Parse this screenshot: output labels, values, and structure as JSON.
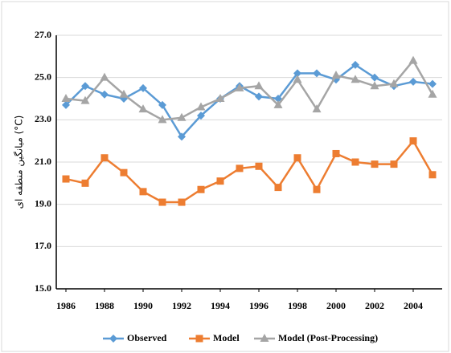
{
  "chart_data": {
    "type": "line",
    "y_label": "میانگین منطقه ای (°C)",
    "x": [
      1986,
      1987,
      1988,
      1989,
      1990,
      1991,
      1992,
      1993,
      1994,
      1995,
      1996,
      1997,
      1998,
      1999,
      2000,
      2001,
      2002,
      2003,
      2004,
      2005
    ],
    "xlim": [
      1985.5,
      2005.5
    ],
    "xticks": [
      1986,
      1988,
      1990,
      1992,
      1994,
      1996,
      1998,
      2000,
      2002,
      2004
    ],
    "ylim": [
      15,
      27
    ],
    "yticks": [
      {
        "value": 15,
        "label": "15.0"
      },
      {
        "value": 17,
        "label": "17.0"
      },
      {
        "value": 19,
        "label": "19.0"
      },
      {
        "value": 21,
        "label": "21.0"
      },
      {
        "value": 23,
        "label": "23.0"
      },
      {
        "value": 25,
        "label": "25.0"
      },
      {
        "value": 27,
        "label": "27.0"
      }
    ],
    "grid": true,
    "legend": "bottom",
    "series": [
      {
        "name": "Observed",
        "color": "#5b9bd5",
        "marker": "diamond",
        "values": [
          23.7,
          24.6,
          24.2,
          24.0,
          24.5,
          23.7,
          22.2,
          23.2,
          24.0,
          24.6,
          24.1,
          24.0,
          25.2,
          25.2,
          24.9,
          25.6,
          25.0,
          24.6,
          24.8,
          24.7
        ]
      },
      {
        "name": "Model",
        "color": "#ed7d31",
        "marker": "square",
        "values": [
          20.2,
          20.0,
          21.2,
          20.5,
          19.6,
          19.1,
          19.1,
          19.7,
          20.1,
          20.7,
          20.8,
          19.8,
          21.2,
          19.7,
          21.4,
          21.0,
          20.9,
          20.9,
          22.0,
          20.4
        ]
      },
      {
        "name": "Model (Post-Processing)",
        "color": "#a5a5a5",
        "marker": "triangle",
        "values": [
          24.0,
          23.9,
          25.0,
          24.2,
          23.5,
          23.0,
          23.1,
          23.6,
          24.0,
          24.5,
          24.6,
          23.7,
          24.9,
          23.5,
          25.1,
          24.9,
          24.6,
          24.7,
          25.8,
          24.2
        ]
      }
    ]
  }
}
